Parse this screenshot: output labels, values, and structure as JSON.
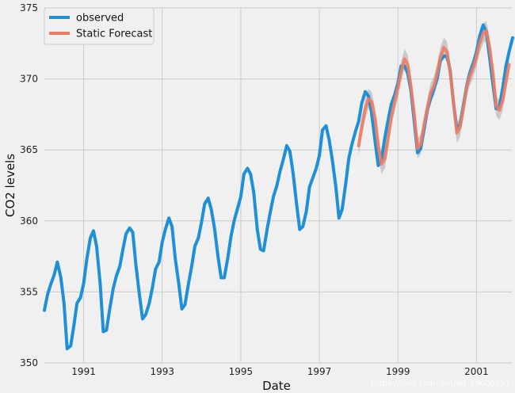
{
  "chart_data": {
    "type": "line",
    "xlabel": "Date",
    "ylabel": "CO2 levels",
    "xlim": [
      1990.0,
      2001.9
    ],
    "ylim": [
      350,
      375
    ],
    "x_ticks": [
      1991,
      1993,
      1995,
      1997,
      1999,
      2001
    ],
    "y_ticks": [
      350,
      355,
      360,
      365,
      370,
      375
    ],
    "grid": true,
    "legend_position": "top-left",
    "series": [
      {
        "name": "observed",
        "color": "#1f8fd6",
        "x": [
          1990.0,
          1990.08,
          1990.17,
          1990.25,
          1990.33,
          1990.42,
          1990.5,
          1990.58,
          1990.67,
          1990.75,
          1990.83,
          1990.92,
          1991.0,
          1991.08,
          1991.17,
          1991.25,
          1991.33,
          1991.42,
          1991.5,
          1991.58,
          1991.67,
          1991.75,
          1991.83,
          1991.92,
          1992.0,
          1992.08,
          1992.17,
          1992.25,
          1992.33,
          1992.42,
          1992.5,
          1992.58,
          1992.67,
          1992.75,
          1992.83,
          1992.92,
          1993.0,
          1993.08,
          1993.17,
          1993.25,
          1993.33,
          1993.42,
          1993.5,
          1993.58,
          1993.67,
          1993.75,
          1993.83,
          1993.92,
          1994.0,
          1994.08,
          1994.17,
          1994.25,
          1994.33,
          1994.42,
          1994.5,
          1994.58,
          1994.67,
          1994.75,
          1994.83,
          1994.92,
          1995.0,
          1995.08,
          1995.17,
          1995.25,
          1995.33,
          1995.42,
          1995.5,
          1995.58,
          1995.67,
          1995.75,
          1995.83,
          1995.92,
          1996.0,
          1996.08,
          1996.17,
          1996.25,
          1996.33,
          1996.42,
          1996.5,
          1996.58,
          1996.67,
          1996.75,
          1996.83,
          1996.92,
          1997.0,
          1997.08,
          1997.17,
          1997.25,
          1997.33,
          1997.42,
          1997.5,
          1997.58,
          1997.67,
          1997.75,
          1997.83,
          1997.92,
          1998.0,
          1998.08,
          1998.17,
          1998.25,
          1998.33,
          1998.42,
          1998.5,
          1998.58,
          1998.67,
          1998.75,
          1998.83,
          1998.92,
          1999.0,
          1999.08,
          1999.17,
          1999.25,
          1999.33,
          1999.42,
          1999.5,
          1999.58,
          1999.67,
          1999.75,
          1999.83,
          1999.92,
          2000.0,
          2000.08,
          2000.17,
          2000.25,
          2000.33,
          2000.42,
          2000.5,
          2000.58,
          2000.67,
          2000.75,
          2000.83,
          2000.92,
          2001.0,
          2001.08,
          2001.17,
          2001.25,
          2001.33,
          2001.42,
          2001.5,
          2001.58,
          2001.67,
          2001.75,
          2001.83,
          2001.92
        ],
        "y": [
          353.7,
          354.8,
          355.6,
          356.2,
          357.1,
          356.0,
          354.2,
          351.0,
          351.2,
          352.6,
          354.2,
          354.6,
          355.6,
          357.3,
          358.8,
          359.3,
          358.2,
          355.6,
          352.2,
          352.3,
          353.9,
          355.2,
          356.1,
          356.8,
          358.0,
          359.1,
          359.5,
          359.2,
          356.9,
          354.8,
          353.1,
          353.4,
          354.2,
          355.3,
          356.6,
          357.1,
          358.5,
          359.4,
          360.2,
          359.6,
          357.4,
          355.6,
          353.8,
          354.1,
          355.6,
          356.8,
          358.2,
          358.8,
          359.9,
          361.2,
          361.6,
          360.8,
          359.5,
          357.5,
          356.0,
          356.0,
          357.4,
          358.9,
          360.0,
          360.9,
          361.7,
          363.3,
          363.7,
          363.3,
          362.0,
          359.4,
          358.0,
          357.9,
          359.4,
          360.6,
          361.7,
          362.5,
          363.5,
          364.3,
          365.3,
          364.9,
          363.4,
          361.2,
          359.4,
          359.6,
          360.7,
          362.4,
          363.0,
          363.7,
          364.6,
          366.4,
          366.7,
          365.7,
          364.3,
          362.4,
          360.2,
          360.8,
          362.6,
          364.4,
          365.4,
          366.3,
          367.0,
          368.3,
          369.1,
          368.8,
          367.6,
          365.6,
          363.9,
          364.3,
          365.9,
          367.1,
          368.2,
          368.9,
          369.7,
          370.9,
          370.9,
          370.4,
          369.2,
          366.9,
          364.8,
          365.1,
          366.5,
          367.8,
          368.6,
          369.3,
          370.0,
          371.3,
          371.6,
          371.6,
          370.6,
          368.2,
          366.5,
          366.8,
          368.2,
          369.5,
          370.4,
          371.1,
          371.9,
          373.0,
          373.8,
          373.3,
          371.6,
          369.6,
          367.9,
          368.0,
          369.4,
          370.9,
          371.9,
          372.9
        ]
      },
      {
        "name": "Static Forecast",
        "color": "#f07b63",
        "x": [
          1998.0,
          1998.08,
          1998.17,
          1998.25,
          1998.33,
          1998.42,
          1998.5,
          1998.58,
          1998.67,
          1998.75,
          1998.83,
          1998.92,
          1999.0,
          1999.08,
          1999.17,
          1999.25,
          1999.33,
          1999.42,
          1999.5,
          1999.58,
          1999.67,
          1999.75,
          1999.83,
          1999.92,
          2000.0,
          2000.08,
          2000.17,
          2000.25,
          2000.33,
          2000.42,
          2000.5,
          2000.58,
          2000.67,
          2000.75,
          2000.83,
          2000.92,
          2001.0,
          2001.08,
          2001.17,
          2001.25,
          2001.33,
          2001.42,
          2001.5,
          2001.58,
          2001.67,
          2001.75,
          2001.83
        ],
        "y": [
          365.3,
          366.6,
          367.9,
          368.6,
          368.4,
          367.2,
          365.3,
          364.0,
          364.4,
          365.8,
          367.3,
          368.4,
          369.4,
          370.5,
          371.4,
          371.0,
          369.5,
          367.4,
          365.1,
          365.4,
          366.8,
          367.9,
          369.0,
          369.5,
          370.4,
          371.5,
          372.2,
          371.9,
          370.5,
          368.2,
          366.2,
          366.6,
          368.0,
          369.4,
          370.2,
          370.8,
          371.6,
          372.5,
          373.2,
          373.4,
          372.3,
          370.4,
          368.1,
          367.8,
          368.5,
          369.8,
          371.0
        ],
        "ci_half_width": 0.7
      }
    ]
  },
  "watermark_text": "https://blog.csdn.net/qq_19600291"
}
